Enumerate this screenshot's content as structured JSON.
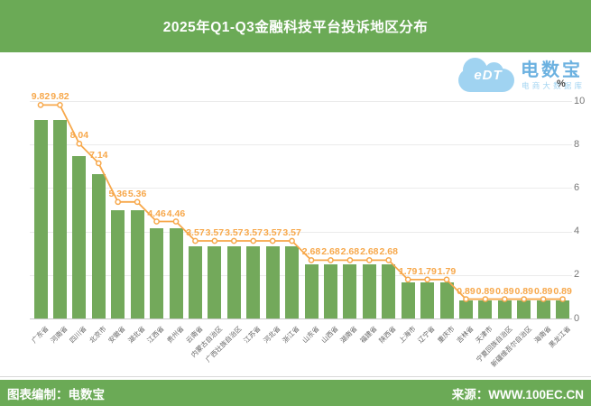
{
  "header": {
    "title": "2025年Q1-Q3金融科技平台投诉地区分布"
  },
  "footer": {
    "left": "图表编制：电数宝",
    "right": "来源：WWW.100EC.CN"
  },
  "logo": {
    "cloud_text": "eDT",
    "brand": "电数宝",
    "sub": "电商大数据库"
  },
  "colors": {
    "green": "#6baa56",
    "bar_green": "#73a95b",
    "line_orange": "#f7a84b",
    "logo_blue": "#4ba0da",
    "logo_light_blue": "#8ccaee"
  },
  "chart_data": {
    "type": "bar",
    "overlay": "line",
    "title": "2025年Q1-Q3金融科技平台投诉地区分布",
    "unit": "%",
    "categories": [
      "广东省",
      "河南省",
      "四川省",
      "北京市",
      "安徽省",
      "湖北省",
      "江西省",
      "贵州省",
      "云南省",
      "内蒙古自治区",
      "广西壮族自治区",
      "江苏省",
      "河北省",
      "浙江省",
      "山东省",
      "山西省",
      "湖南省",
      "福建省",
      "陕西省",
      "上海市",
      "辽宁省",
      "重庆市",
      "吉林省",
      "天津市",
      "宁夏回族自治区",
      "新疆维吾尔自治区",
      "海南省",
      "黑龙江省"
    ],
    "values": [
      9.82,
      9.82,
      8.04,
      7.14,
      5.36,
      5.36,
      4.46,
      4.46,
      3.57,
      3.57,
      3.57,
      3.57,
      3.57,
      3.57,
      2.68,
      2.68,
      2.68,
      2.68,
      2.68,
      1.79,
      1.79,
      1.79,
      0.89,
      0.89,
      0.89,
      0.89,
      0.89,
      0.89
    ],
    "ylim": [
      0,
      10
    ],
    "yticks": [
      0,
      2,
      4,
      6,
      8,
      10
    ],
    "grid": true,
    "y_axis_position": "right",
    "xlabel": "",
    "ylabel": "%"
  }
}
